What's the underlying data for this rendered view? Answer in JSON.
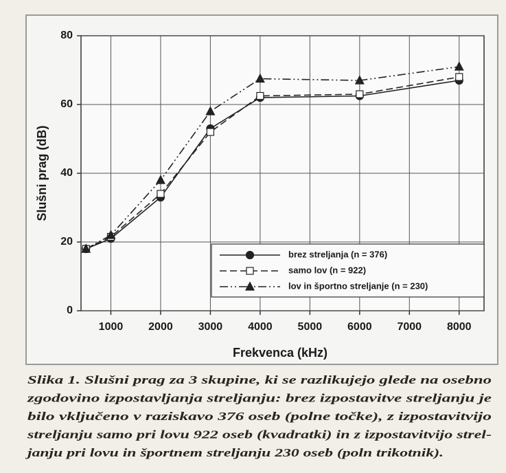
{
  "chart_data": {
    "type": "line",
    "x_label": "Frekvenca (kHz)",
    "y_label": "Slušni prag (dB)",
    "x": [
      500,
      1000,
      2000,
      3000,
      4000,
      6000,
      8000
    ],
    "xlim": [
      400,
      8500
    ],
    "xticks": [
      1000,
      2000,
      3000,
      4000,
      5000,
      6000,
      7000,
      8000
    ],
    "ylim": [
      0,
      80
    ],
    "yticks": [
      0,
      20,
      40,
      60,
      80
    ],
    "grid": true,
    "legend": "lower right",
    "series": [
      {
        "name": "brez streljanja (n = 376)",
        "color": "#222222",
        "marker": "circle",
        "dash": "solid",
        "values": [
          18,
          21,
          33,
          53,
          62,
          62.5,
          67
        ]
      },
      {
        "name": "samo lov (n = 922)",
        "color": "#222222",
        "marker": "square",
        "dash": "dashed",
        "values": [
          18,
          21.5,
          34,
          52,
          62.5,
          63,
          68
        ]
      },
      {
        "name": "lov in športno streljanje (n = 230)",
        "color": "#222222",
        "marker": "triangle",
        "dash": "dashdotdot",
        "values": [
          18,
          22,
          38,
          58,
          67.5,
          67,
          71
        ]
      }
    ]
  },
  "caption": [
    "Slika 1. Slušni prag za 3 skupine, ki se razlikujejo glede na osebno",
    "zgodovino izpostavljanja streljanju: brez izpostavitve streljanju je",
    "bilo vključeno v raziskavo 376 oseb (polne točke), z izpostavitvijo",
    "streljanju samo pri lovu 922 oseb (kvadratki) in z izpostavitvijo strel-",
    "janju pri lovu in športnem streljanju 230 oseb (poln trikotnik)."
  ]
}
